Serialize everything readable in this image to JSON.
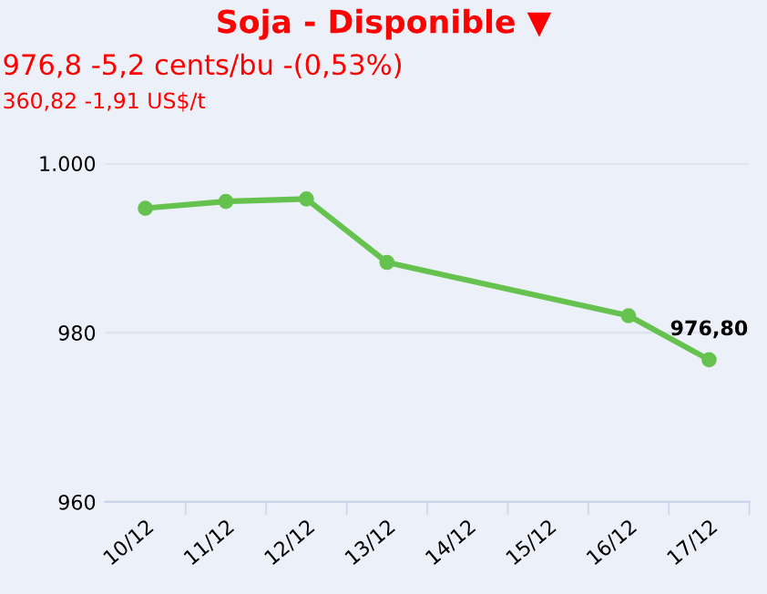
{
  "chart_data": {
    "type": "line",
    "title": "Soja - Disponible ▼",
    "subtitle": "976,8 -5,2 cents/bu -(0,53%)",
    "annotations": [
      "360,82 -1,91 US$/t"
    ],
    "categories": [
      "10/12",
      "11/12",
      "12/12",
      "13/12",
      "14/12",
      "15/12",
      "16/12",
      "17/12"
    ],
    "series": [
      {
        "color": "#66c24f",
        "values": [
          994.7,
          995.5,
          995.8,
          988.3,
          null,
          null,
          982.0,
          976.8
        ],
        "value_labels": [
          null,
          null,
          null,
          null,
          null,
          null,
          null,
          "976,80"
        ]
      }
    ],
    "ylim": [
      960,
      1000
    ],
    "yticks": [
      960,
      980,
      {
        "value": 1000,
        "label": "1.000"
      }
    ],
    "grid": "y",
    "marker": "circle",
    "line_style": "solid"
  }
}
